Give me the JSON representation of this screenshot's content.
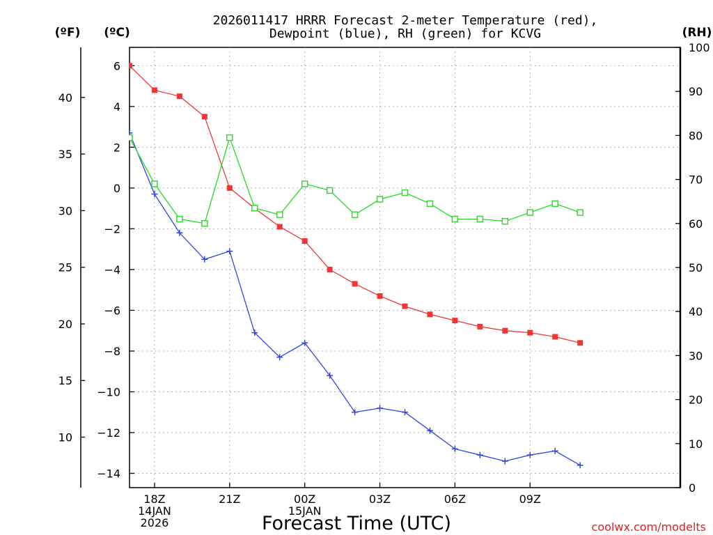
{
  "chart_data": {
    "type": "line",
    "title_lines": [
      "2026011417 HRRR Forecast 2-meter Temperature (red),",
      "Dewpoint (blue), RH (green) for KCVG"
    ],
    "xlabel": "Forecast Time (UTC)",
    "credit": "coolwx.com/modelts",
    "unit_labels": {
      "fahrenheit": "(ºF)",
      "celsius": "(ºC)",
      "rh": "(RH)"
    },
    "x_hours": [
      0,
      1,
      2,
      3,
      4,
      5,
      6,
      7,
      8,
      9,
      10,
      11,
      12,
      13,
      14,
      15,
      16,
      17,
      18,
      19,
      20,
      21,
      22
    ],
    "x_range": [
      0,
      22
    ],
    "x_ticks": [
      {
        "hour": 1,
        "lines": [
          "18Z",
          "14JAN",
          "2026"
        ]
      },
      {
        "hour": 4,
        "lines": [
          "21Z"
        ]
      },
      {
        "hour": 7,
        "lines": [
          "00Z",
          "15JAN"
        ]
      },
      {
        "hour": 10,
        "lines": [
          "03Z"
        ]
      },
      {
        "hour": 13,
        "lines": [
          "06Z"
        ]
      },
      {
        "hour": 16,
        "lines": [
          "09Z"
        ]
      }
    ],
    "celsius_axis": {
      "range": [
        -14.7,
        6.9
      ],
      "ticks": [
        6,
        4,
        2,
        0,
        -2,
        -4,
        -6,
        -8,
        -10,
        -12,
        -14
      ]
    },
    "fahrenheit_axis": {
      "ticks": [
        40,
        35,
        30,
        25,
        20,
        15,
        10
      ]
    },
    "rh_axis": {
      "range": [
        0,
        100
      ],
      "ticks": [
        100,
        90,
        80,
        70,
        60,
        50,
        40,
        30,
        20,
        10,
        0
      ]
    },
    "series": [
      {
        "name": "2-meter Temperature",
        "unit": "°C",
        "axis": "celsius",
        "color": "#ef3535",
        "marker": "filled-square",
        "values": [
          6.0,
          4.8,
          4.5,
          3.5,
          0.0,
          -1.0,
          -1.9,
          -2.6,
          -4.0,
          -4.7,
          -5.3,
          -5.8,
          -6.2,
          -6.5,
          -6.8,
          -7.0,
          -7.1,
          -7.3,
          -7.6
        ]
      },
      {
        "name": "Dewpoint",
        "unit": "°C",
        "axis": "celsius",
        "color": "#2f45e6",
        "marker": "plus",
        "values": [
          2.7,
          -0.3,
          -2.2,
          -3.5,
          -3.1,
          -7.1,
          -8.3,
          -7.6,
          -9.2,
          -11.0,
          -10.8,
          -11.0,
          -11.9,
          -12.8,
          -13.1,
          -13.4,
          -13.1,
          -12.9,
          -13.6
        ]
      },
      {
        "name": "Relative Humidity",
        "unit": "%",
        "axis": "rh",
        "color": "#22dd22",
        "marker": "open-square",
        "values": [
          79.5,
          69.0,
          61.0,
          60.0,
          79.5,
          63.5,
          62.0,
          69.0,
          67.5,
          62.0,
          65.5,
          67.0,
          64.5,
          61.0,
          61.0,
          60.5,
          62.5,
          64.5,
          62.5
        ]
      }
    ]
  }
}
